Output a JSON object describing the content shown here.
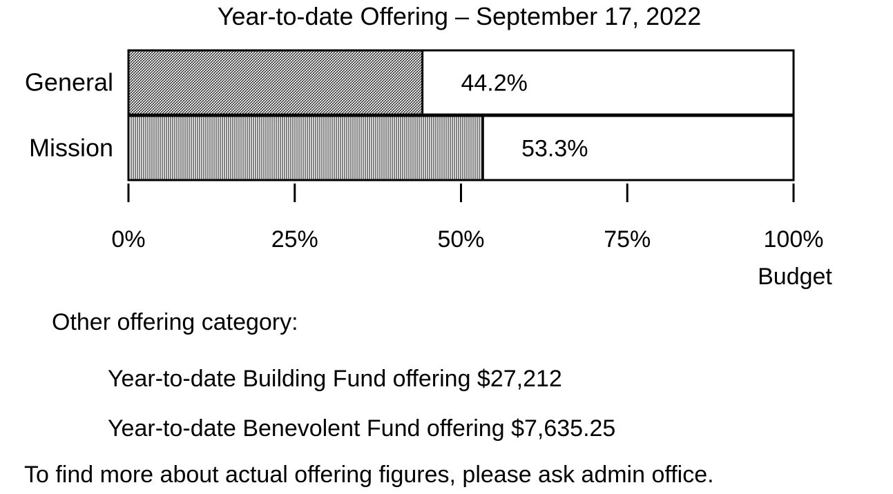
{
  "chart_data": {
    "type": "bar",
    "orientation": "horizontal",
    "title": "Year-to-date Offering – September 17, 2022",
    "categories": [
      "General",
      "Mission"
    ],
    "values": [
      44.2,
      53.3
    ],
    "value_labels": [
      "44.2%",
      "53.3%"
    ],
    "xlim": [
      0,
      100
    ],
    "x_ticks": [
      0,
      25,
      50,
      75,
      100
    ],
    "x_tick_labels": [
      "0%",
      "25%",
      "50%",
      "75%",
      "100%"
    ],
    "xlabel": "Budget",
    "ylabel": "",
    "grid": false,
    "legend": "none",
    "fills": [
      "diagonal-hatch",
      "vertical-hatch"
    ],
    "colors": {
      "bar_fill": "#ffffff",
      "bar_stroke": "#000000",
      "pattern": "#000000"
    }
  },
  "notes": {
    "other_heading": "Other offering category:",
    "building": "Year-to-date Building Fund offering $27,212",
    "benevolent": "Year-to-date Benevolent Fund offering $7,635.25",
    "contact": "To find more about actual offering figures, please ask admin office."
  }
}
